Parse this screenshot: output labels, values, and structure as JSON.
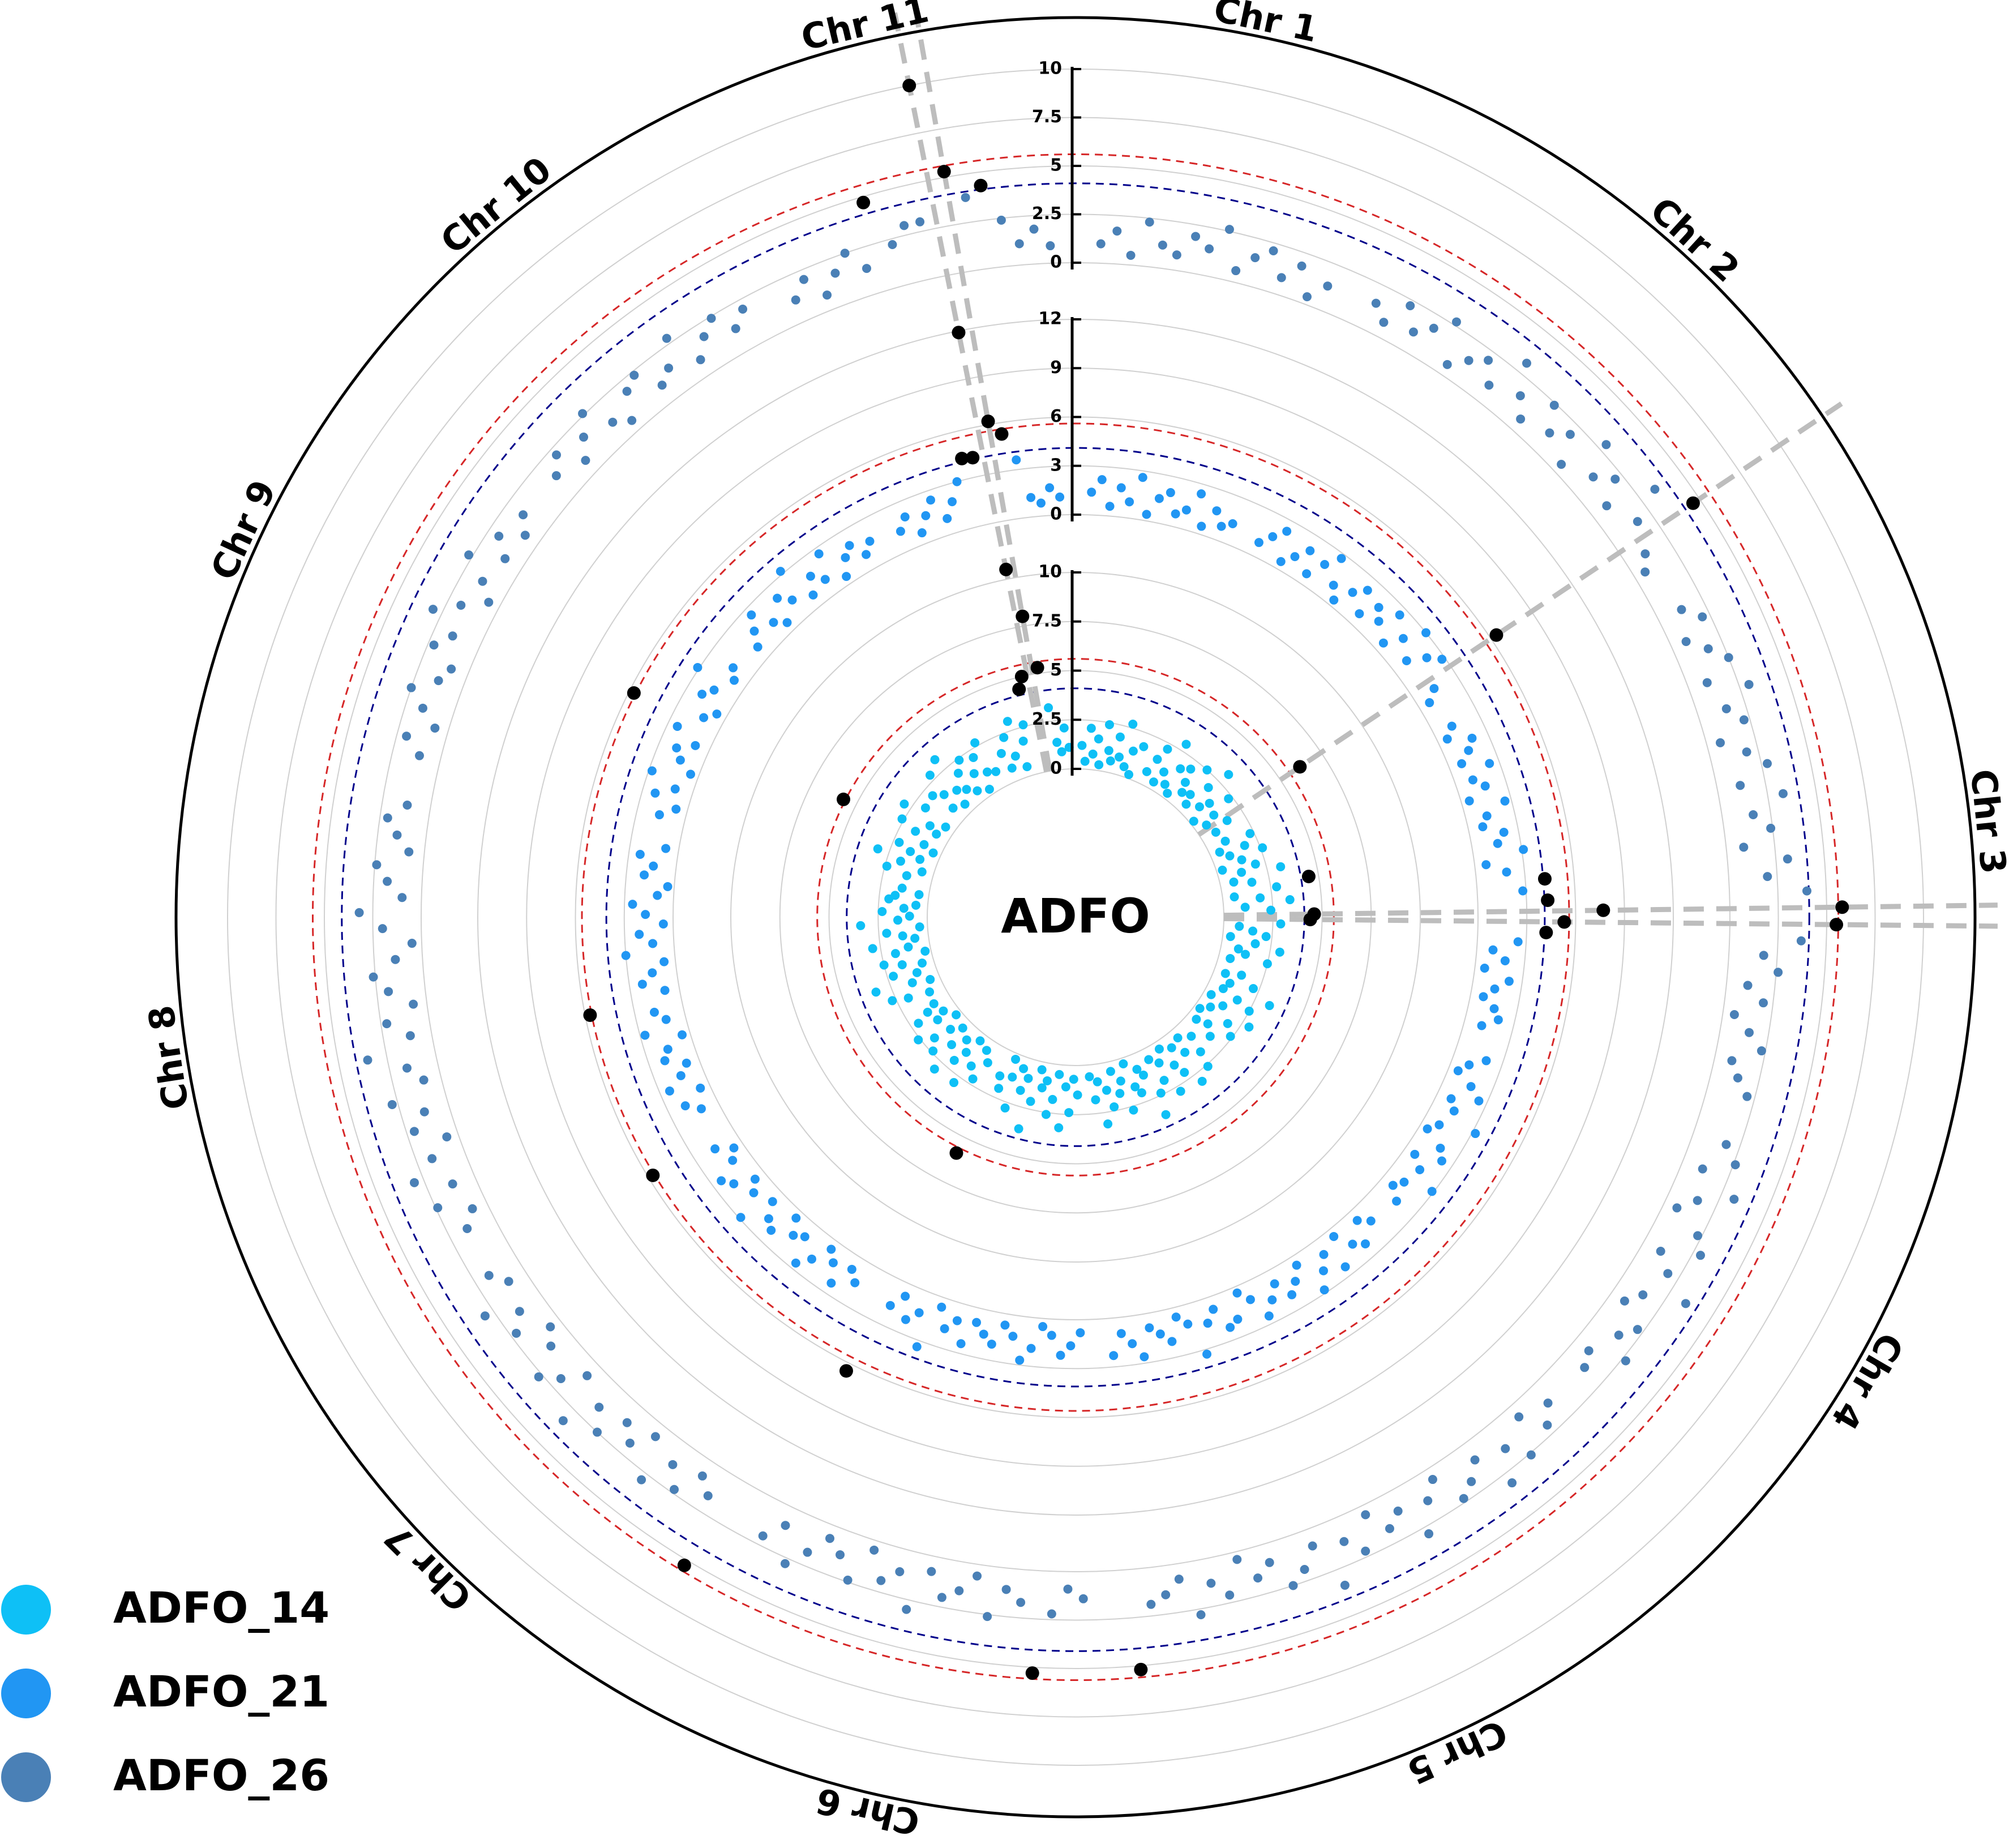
{
  "chart_data": {
    "type": "manhattan",
    "polar": true,
    "title": "ADFO",
    "grid": true,
    "legend": "bottom-left",
    "highlight_color": "#000000",
    "thresholds": [
      {
        "value": 5.6,
        "color": "#d62728"
      },
      {
        "value": 4.1,
        "color": "#00008b"
      }
    ],
    "categories": [
      "Chr 1",
      "Chr 2",
      "Chr 3",
      "Chr 4",
      "Chr 5",
      "Chr 6",
      "Chr 7",
      "Chr 8",
      "Chr 9",
      "Chr 10",
      "Chr 11"
    ],
    "series": [
      {
        "name": "ADFO_14",
        "color": "#0ec0f6",
        "ylim": [
          0,
          10
        ],
        "yticks": [
          0,
          2.5,
          5,
          7.5,
          10
        ],
        "values": [
          [
            1.2,
            0.4,
            2.1,
            0.8,
            1.6,
            0.3,
            2.4,
            1.1,
            0.6,
            1.9,
            0.9,
            2.7,
            0.5,
            1.4,
            0.2,
            1.8
          ],
          [
            0.7,
            1.5,
            2.2,
            0.4,
            1.1,
            2.9,
            0.6,
            1.7,
            0.3,
            2.0,
            1.3,
            0.8,
            2.5,
            1.0,
            0.5,
            1.9,
            3.1,
            0.9,
            1.4,
            0.2,
            2.3,
            1.2,
            0.6,
            6.2,
            1.6,
            0.8
          ],
          [
            1.0,
            2.3,
            0.5,
            1.8,
            0.9,
            2.6,
            1.4,
            0.3,
            2.0,
            1.2,
            3.2,
            0.7,
            1.6,
            4.5,
            2.8,
            0.6,
            1.9,
            3.4,
            1.1,
            2.4,
            4.6,
            4.4,
            2.9,
            0.8,
            1.5,
            2.2,
            0.4,
            1.7,
            3.0,
            0.9,
            1.3,
            2.5,
            0.6
          ],
          [
            1.4,
            0.6,
            2.2,
            1.0,
            3.3,
            0.8,
            1.7,
            2.5,
            0.4,
            1.2,
            2.9,
            0.7,
            1.9,
            0.3,
            2.4,
            1.1,
            0.5,
            1.6
          ],
          [
            0.9,
            1.8,
            2.6,
            0.5,
            1.3,
            3.0,
            0.7,
            2.1,
            1.5,
            0.4,
            2.8,
            1.0,
            1.9,
            0.6,
            2.4,
            3.5,
            1.2,
            0.8,
            2.0,
            1.6,
            0.3,
            2.7,
            1.1,
            1.7,
            0.5,
            2.3,
            1.4,
            3.1,
            0.9,
            1.8,
            0.6
          ],
          [
            1.5,
            0.7,
            2.4,
            1.1,
            3.2,
            0.5,
            1.8,
            2.6,
            0.9,
            1.3,
            0.4,
            2.1,
            3.6,
            1.0,
            1.7,
            0.6,
            2.8,
            1.2,
            0.3,
            2.0,
            1.4,
            5.9
          ],
          [
            1.1,
            2.2,
            0.6,
            1.7,
            2.9,
            0.4,
            1.3,
            2.0,
            0.8,
            3.0,
            1.5,
            0.5,
            2.4,
            1.0,
            1.9,
            0.3,
            2.6,
            1.2,
            0.7,
            2.1,
            1.4,
            0.9
          ],
          [
            0.8,
            1.9,
            2.7,
            0.5,
            1.4,
            3.3,
            1.0,
            2.2,
            0.6,
            1.6,
            2.5,
            0.3,
            1.8,
            1.1,
            2.9,
            0.7,
            1.3,
            2.1,
            0.4,
            3.4,
            1.5,
            0.9,
            2.3,
            1.2,
            0.6,
            2.0,
            1.7,
            0.5,
            1.4
          ],
          [
            1.3,
            2.4,
            0.6,
            1.8,
            3.1,
            0.9,
            1.5,
            2.2,
            0.4,
            1.0,
            5.7,
            1.7,
            2.6,
            0.7,
            1.2,
            2.9,
            0.5,
            1.9
          ],
          [
            2.0,
            0.8,
            1.6,
            2.8,
            0.5,
            1.3,
            3.2,
            1.0,
            1.9,
            0.6,
            2.4,
            1.4,
            0.3,
            2.1,
            1.1,
            2.7,
            0.9
          ],
          [
            1.6,
            0.7,
            2.3,
            1.2,
            3.0,
            0.5,
            1.8,
            2.6,
            4.4,
            5.0,
            10.5,
            8.0,
            5.3,
            3.2,
            1.4,
            0.9,
            2.1,
            1.1
          ]
        ]
      },
      {
        "name": "ADFO_21",
        "color": "#2196f3",
        "ylim": [
          0,
          12
        ],
        "yticks": [
          0,
          3,
          6,
          9,
          12
        ],
        "values": [
          [
            1.4,
            2.2,
            0.6,
            1.8,
            1.0,
            2.6,
            0.4,
            1.5,
            2.0,
            0.8,
            1.2,
            2.4,
            0.5,
            1.7,
            0.9,
            1.3
          ],
          [
            0.9,
            1.6,
            2.3,
            0.5,
            1.2,
            2.0,
            0.7,
            1.8,
            2.7,
            1.1,
            0.4,
            1.5,
            2.2,
            0.8,
            1.9,
            1.3,
            2.5,
            0.6,
            1.7,
            3.0,
            1.0,
            2.1,
            2.8,
            6.4,
            1.4,
            0.7
          ],
          [
            1.2,
            0.6,
            2.0,
            1.5,
            0.8,
            2.4,
            1.1,
            1.7,
            0.5,
            2.6,
            1.3,
            0.9,
            2.1,
            1.6,
            3.1,
            0.7,
            1.9,
            4.2,
            2.8,
            4.3,
            7.7,
            5.3,
            4.2,
            2.5,
            1.0,
            1.8,
            0.6,
            2.2,
            1.4,
            0.8,
            1.6,
            2.0,
            1.1
          ],
          [
            2.0,
            1.1,
            0.6,
            1.7,
            2.5,
            0.9,
            1.4,
            3.2,
            1.0,
            0.5,
            1.8,
            2.3,
            0.7,
            1.5,
            2.9,
            1.2,
            0.8,
            1.6
          ],
          [
            1.3,
            0.7,
            2.1,
            1.6,
            0.5,
            2.4,
            1.0,
            1.8,
            2.8,
            0.6,
            1.4,
            2.0,
            0.9,
            1.7,
            2.5,
            1.1,
            0.4,
            1.9,
            2.2,
            0.8,
            1.5,
            3.3,
            1.2,
            0.6,
            2.0,
            1.4,
            0.9,
            2.6,
            1.7,
            1.0,
            2.3
          ],
          [
            0.8,
            1.6,
            2.2,
            1.0,
            0.5,
            1.9,
            2.7,
            1.3,
            0.7,
            2.0,
            1.5,
            0.9,
            2.4,
            1.1,
            1.8,
            0.6,
            3.4,
            1.4,
            2.1,
            0.8,
            1.7,
            6.5
          ],
          [
            1.5,
            0.9,
            2.3,
            1.2,
            0.6,
            1.8,
            2.6,
            1.0,
            1.4,
            0.5,
            2.1,
            1.7,
            0.8,
            2.9,
            1.3,
            0.7,
            1.9,
            2.4,
            1.1,
            0.6,
            1.6,
            5.7
          ],
          [
            1.1,
            1.9,
            0.6,
            2.4,
            1.4,
            0.8,
            2.0,
            1.6,
            0.5,
            2.7,
            1.2,
            1.8,
            5.7,
            0.9,
            2.2,
            1.5,
            0.7,
            3.0,
            1.3,
            2.1,
            0.6,
            1.7,
            2.5,
            1.0,
            0.4,
            1.9,
            1.4,
            2.3,
            0.8
          ],
          [
            1.6,
            0.7,
            2.2,
            1.1,
            2.8,
            0.5,
            1.4,
            1.9,
            0.9,
            2.4,
            5.7,
            1.2,
            0.6,
            2.0,
            1.5,
            3.1,
            0.8,
            1.3
          ],
          [
            0.9,
            1.7,
            2.5,
            1.2,
            0.6,
            2.1,
            1.4,
            3.2,
            0.8,
            1.8,
            1.1,
            2.6,
            0.5,
            1.5,
            2.0,
            1.0,
            1.6
          ],
          [
            1.3,
            2.0,
            0.7,
            1.6,
            2.4,
            1.0,
            1.9,
            3.0,
            4.3,
            4.2,
            11.9,
            6.2,
            5.3,
            3.6,
            1.2,
            0.8,
            1.7,
            1.1
          ]
        ]
      },
      {
        "name": "ADFO_26",
        "color": "#4a80b6",
        "ylim": [
          0,
          10
        ],
        "yticks": [
          0,
          2.5,
          5,
          7.5,
          10
        ],
        "values": [
          [
            1.0,
            1.7,
            0.5,
            2.3,
            1.2,
            0.8,
            1.9,
            1.4,
            2.6,
            0.6,
            1.5,
            2.1,
            0.9,
            1.8,
            0.4,
            1.3
          ],
          [
            1.5,
            0.8,
            2.2,
            1.1,
            1.8,
            2.7,
            0.6,
            1.4,
            2.0,
            1.0,
            3.1,
            1.6,
            0.7,
            2.4,
            1.2,
            1.9,
            0.5,
            2.9,
            1.3,
            2.1,
            0.9,
            3.4,
            1.7,
            4.6,
            1.1,
            0.6
          ],
          [
            1.3,
            2.1,
            0.8,
            1.7,
            2.5,
            1.0,
            3.0,
            1.5,
            2.2,
            0.7,
            1.9,
            2.8,
            1.2,
            3.3,
            1.6,
            2.4,
            0.9,
            3.1,
            2.0,
            4.0,
            5.8,
            5.5,
            3.7,
            1.8,
            2.6,
            1.1,
            2.0,
            0.6,
            1.5,
            2.3,
            0.9,
            1.4,
            2.1
          ],
          [
            1.8,
            2.6,
            1.1,
            3.2,
            1.5,
            0.7,
            2.3,
            2.9,
            1.0,
            1.9,
            3.5,
            1.4,
            0.8,
            2.2,
            1.6,
            2.7,
            0.9,
            1.3
          ],
          [
            1.2,
            2.0,
            0.7,
            2.6,
            1.5,
            3.1,
            1.0,
            1.8,
            2.3,
            0.6,
            1.4,
            2.9,
            1.1,
            1.7,
            0.5,
            2.2,
            1.3,
            3.4,
            0.9,
            1.9,
            2.5,
            1.0,
            1.6,
            0.4,
            2.1,
            1.3,
            2.8,
            0.8,
            1.5,
            1.9,
            5.2
          ],
          [
            1.4,
            0.9,
            2.2,
            5.3,
            1.7,
            1.1,
            2.6,
            0.6,
            1.5,
            2.0,
            0.8,
            3.0,
            1.2,
            1.9,
            0.5,
            2.4,
            1.3,
            0.7,
            1.8,
            2.8,
            1.0,
            2.0
          ],
          [
            5.3,
            1.6,
            0.9,
            2.3,
            1.3,
            2.9,
            0.7,
            1.8,
            1.1,
            2.5,
            1.5,
            3.3,
            0.8,
            1.9,
            2.7,
            1.2,
            0.6,
            2.2,
            1.4,
            3.0,
            1.0,
            1.7
          ],
          [
            1.5,
            0.8,
            2.4,
            1.2,
            3.0,
            1.7,
            0.6,
            2.1,
            1.3,
            2.8,
            0.9,
            1.6,
            3.5,
            1.1,
            2.2,
            0.7,
            1.9,
            2.6,
            1.4,
            0.5,
            2.0,
            3.2,
            1.0,
            1.8,
            2.4,
            0.8,
            1.5,
            2.1,
            1.2
          ],
          [
            1.1,
            2.0,
            0.7,
            1.6,
            2.5,
            1.3,
            0.9,
            2.2,
            1.5,
            3.0,
            1.8,
            0.6,
            1.4,
            2.7,
            1.0,
            1.9,
            0.8,
            1.5
          ],
          [
            1.4,
            2.1,
            0.8,
            1.7,
            2.6,
            1.2,
            0.6,
            1.9,
            2.3,
            1.0,
            1.5,
            2.8,
            0.9,
            1.8,
            2.4,
            1.3,
            2.0
          ],
          [
            1.2,
            2.0,
            0.8,
            1.7,
            2.5,
            1.4,
            4.7,
            2.2,
            3.0,
            3.0,
            10.0,
            5.3,
            3.8,
            4.3,
            2.4,
            1.1,
            1.8,
            0.9
          ]
        ]
      }
    ]
  }
}
